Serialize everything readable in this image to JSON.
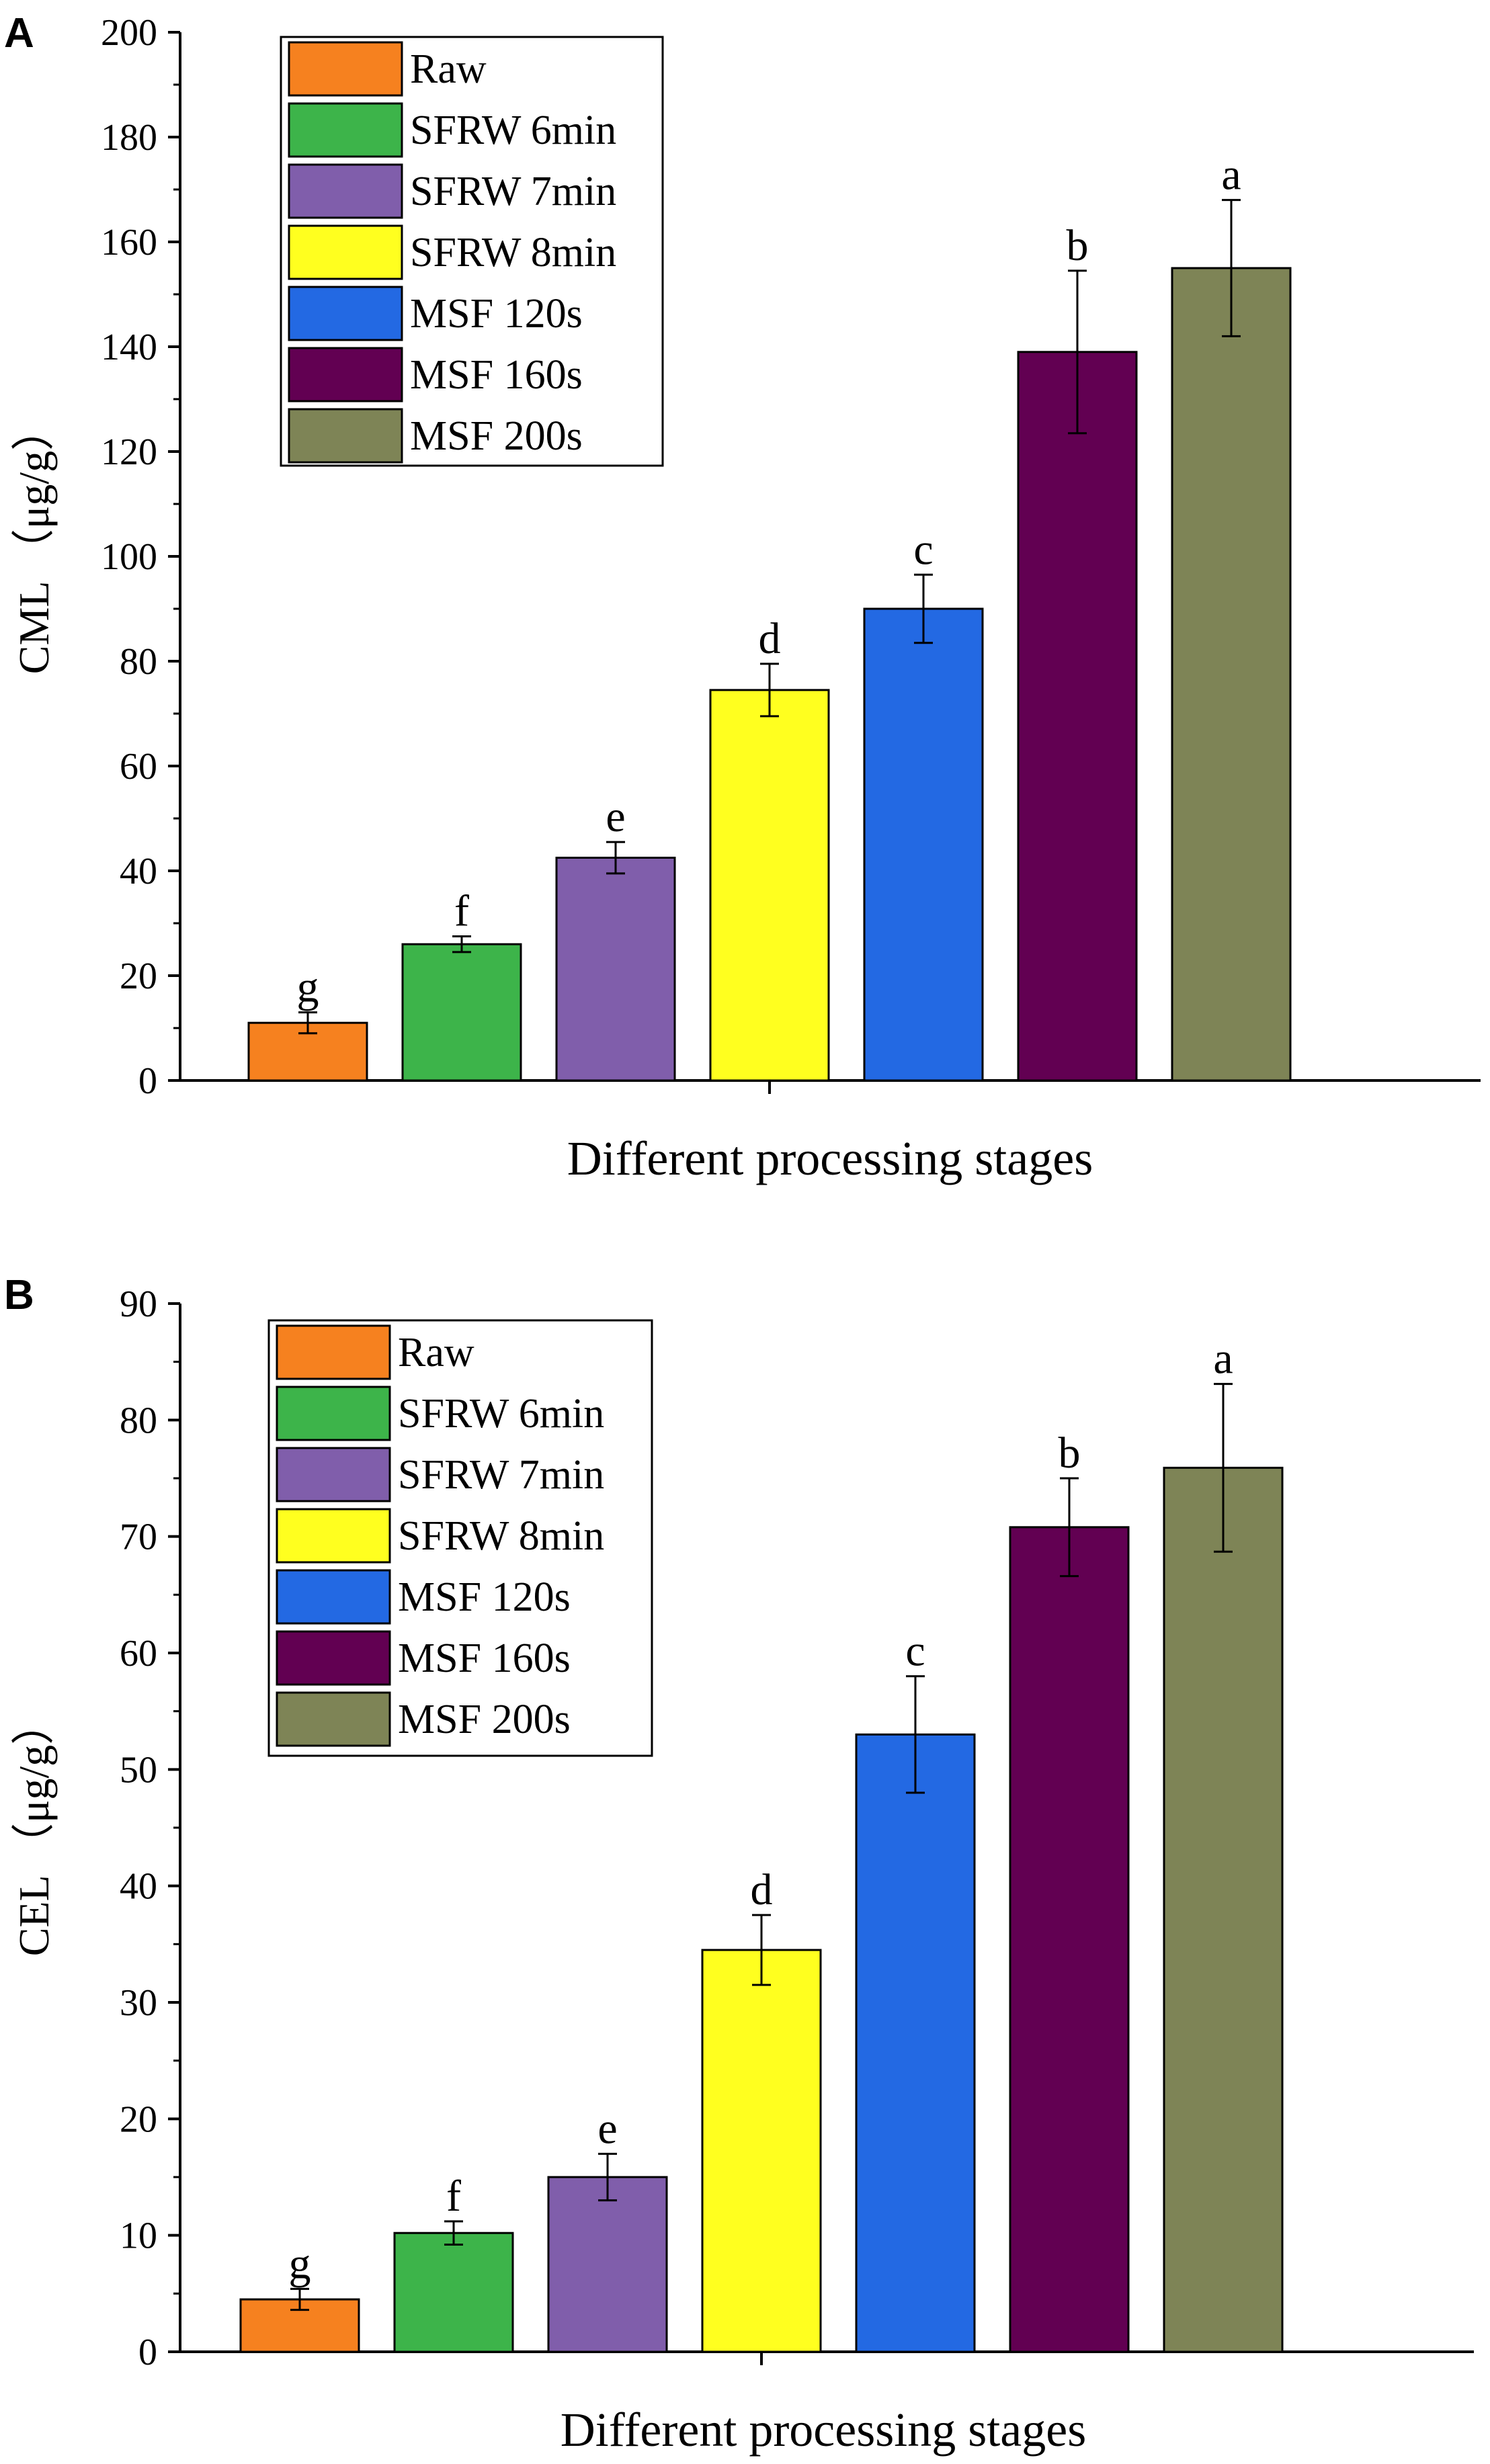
{
  "chart_data": [
    {
      "panel": "A",
      "type": "bar",
      "categories": [
        "Raw",
        "SFRW 6min",
        "SFRW 7min",
        "SFRW 8min",
        "MSF 120s",
        "MSF 160s",
        "MSF 200s"
      ],
      "values": [
        11,
        26,
        42.5,
        74.5,
        90,
        139,
        155
      ],
      "errors": [
        2,
        1.5,
        3,
        5,
        6.5,
        15.5,
        13
      ],
      "significance": [
        "g",
        "f",
        "e",
        "d",
        "c",
        "b",
        "a"
      ],
      "colors": [
        "#F6811F",
        "#3DB44A",
        "#805EAB",
        "#FFFF1F",
        "#2369E3",
        "#620052",
        "#7E8456"
      ],
      "xlabel": "Different processing stages",
      "ylabel": "CML （μg/g）",
      "ylim": [
        0,
        200
      ],
      "yticks": [
        0,
        20,
        40,
        60,
        80,
        100,
        120,
        140,
        160,
        180,
        200
      ],
      "legend_position": "top-left"
    },
    {
      "panel": "B",
      "type": "bar",
      "categories": [
        "Raw",
        "SFRW 6min",
        "SFRW 7min",
        "SFRW 8min",
        "MSF 120s",
        "MSF 160s",
        "MSF 200s"
      ],
      "values": [
        4.5,
        10.2,
        15,
        34.5,
        53,
        70.8,
        75.9
      ],
      "errors": [
        0.9,
        1,
        2,
        3,
        5,
        4.2,
        7.2
      ],
      "significance": [
        "g",
        "f",
        "e",
        "d",
        "c",
        "b",
        "a"
      ],
      "colors": [
        "#F6811F",
        "#3DB44A",
        "#805EAB",
        "#FFFF1F",
        "#2369E3",
        "#620052",
        "#7E8456"
      ],
      "xlabel": "Different processing stages",
      "ylabel": "CEL （μg/g）",
      "ylim": [
        0,
        90
      ],
      "yticks": [
        0,
        10,
        20,
        30,
        40,
        50,
        60,
        70,
        80,
        90
      ],
      "legend_position": "top-left"
    }
  ]
}
